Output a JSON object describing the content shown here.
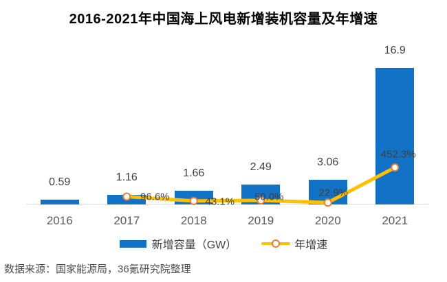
{
  "title": "2016-2021年中国海上风电新增装机容量及年增速",
  "source_note": "数据来源：国家能源局，36氪研究院整理",
  "legend": {
    "bar_label": "新增容量（GW）",
    "line_label": "年增速"
  },
  "colors": {
    "bar": "#1272C6",
    "line": "#FFC000",
    "marker_stroke": "#ED7D31",
    "marker_fill": "#FFFFFF",
    "axis": "#D9D9D9",
    "value_label": "#404040",
    "tick_label": "#595959",
    "title": "#000000",
    "footer": "#4D4D4D"
  },
  "chart_data": {
    "type": "bar",
    "subtype": "bar-line-combo",
    "title": "2016-2021年中国海上风电新增装机容量及年增速",
    "categories": [
      "2016",
      "2017",
      "2018",
      "2019",
      "2020",
      "2021"
    ],
    "series": [
      {
        "name": "新增容量（GW）",
        "type": "bar",
        "unit": "GW",
        "values": [
          0.59,
          1.16,
          1.66,
          2.49,
          3.06,
          16.9
        ],
        "labels": [
          "0.59",
          "1.16",
          "1.66",
          "2.49",
          "3.06",
          "16.9"
        ]
      },
      {
        "name": "年增速",
        "type": "line",
        "unit": "%",
        "values": [
          null,
          96.6,
          43.1,
          50.0,
          22.9,
          452.3
        ],
        "labels": [
          null,
          "96.6%",
          "43.1%",
          "50.0%",
          "22.9%",
          "452.3%"
        ]
      }
    ],
    "xlabel": "",
    "ylabel": "",
    "grid": false,
    "legend_position": "bottom",
    "bar_axis_range": [
      0,
      17.5
    ],
    "line_axis_range_pct": [
      0,
      500
    ]
  }
}
